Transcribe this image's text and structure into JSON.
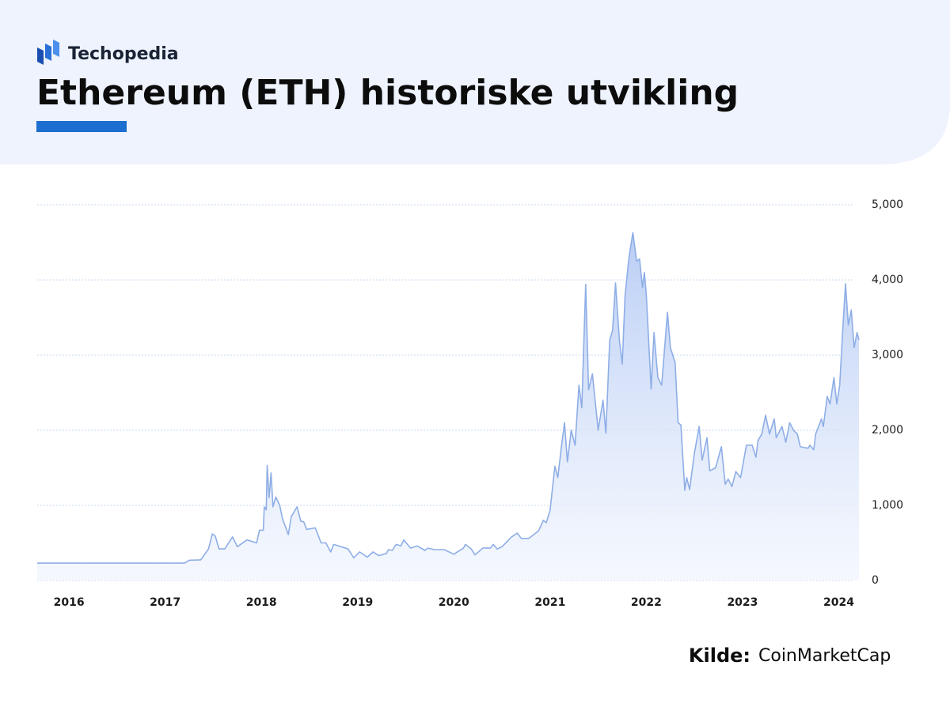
{
  "header": {
    "brand": "Techopedia"
  },
  "chart_data": {
    "type": "area",
    "title": "Ethereum (ETH) historiske utvikling",
    "source_label": "Kilde:",
    "source": "CoinMarketCap",
    "color": "#8eaee6",
    "grid": true,
    "xlim": [
      2015.67,
      2024.21
    ],
    "xticks": [
      2016,
      2017,
      2018,
      2019,
      2020,
      2021,
      2022,
      2023,
      2024
    ],
    "ylim": [
      0,
      5000
    ],
    "yticks": [
      0,
      {
        "value": 1000,
        "label": "1,000"
      },
      {
        "value": 2000,
        "label": "2,000"
      },
      {
        "value": 3000,
        "label": "3,000"
      },
      {
        "value": 4000,
        "label": "4,000"
      },
      {
        "value": 5000,
        "label": "5,000"
      }
    ],
    "x": [
      2015.67,
      2017.2,
      2017.25,
      2017.37,
      2017.45,
      2017.49,
      2017.52,
      2017.56,
      2017.62,
      2017.7,
      2017.75,
      2017.85,
      2017.95,
      2017.98,
      2018.02,
      2018.03,
      2018.05,
      2018.06,
      2018.08,
      2018.1,
      2018.12,
      2018.15,
      2018.19,
      2018.22,
      2018.28,
      2018.31,
      2018.37,
      2018.41,
      2018.44,
      2018.47,
      2018.56,
      2018.62,
      2018.67,
      2018.72,
      2018.75,
      2018.85,
      2018.9,
      2018.96,
      2019.02,
      2019.1,
      2019.16,
      2019.22,
      2019.3,
      2019.32,
      2019.36,
      2019.4,
      2019.45,
      2019.48,
      2019.55,
      2019.62,
      2019.7,
      2019.73,
      2019.8,
      2019.9,
      2020.0,
      2020.1,
      2020.12,
      2020.18,
      2020.22,
      2020.3,
      2020.38,
      2020.41,
      2020.45,
      2020.5,
      2020.6,
      2020.66,
      2020.7,
      2020.78,
      2020.88,
      2020.93,
      2020.96,
      2021.0,
      2021.05,
      2021.08,
      2021.12,
      2021.15,
      2021.18,
      2021.22,
      2021.26,
      2021.3,
      2021.33,
      2021.37,
      2021.4,
      2021.44,
      2021.5,
      2021.55,
      2021.58,
      2021.62,
      2021.65,
      2021.68,
      2021.72,
      2021.75,
      2021.78,
      2021.82,
      2021.86,
      2021.9,
      2021.93,
      2021.96,
      2021.98,
      2022.0,
      2022.05,
      2022.08,
      2022.12,
      2022.16,
      2022.22,
      2022.25,
      2022.3,
      2022.33,
      2022.36,
      2022.4,
      2022.42,
      2022.45,
      2022.5,
      2022.55,
      2022.58,
      2022.63,
      2022.66,
      2022.72,
      2022.78,
      2022.82,
      2022.85,
      2022.89,
      2022.93,
      2022.98,
      2023.04,
      2023.1,
      2023.14,
      2023.16,
      2023.2,
      2023.24,
      2023.28,
      2023.33,
      2023.35,
      2023.41,
      2023.45,
      2023.49,
      2023.53,
      2023.57,
      2023.6,
      2023.68,
      2023.7,
      2023.74,
      2023.76,
      2023.82,
      2023.84,
      2023.88,
      2023.91,
      2023.95,
      2023.98,
      2024.01,
      2024.04,
      2024.07,
      2024.1,
      2024.13,
      2024.16,
      2024.19,
      2024.21
    ],
    "values": [
      230,
      230,
      270,
      275,
      420,
      620,
      590,
      420,
      420,
      580,
      450,
      540,
      500,
      670,
      670,
      980,
      940,
      1530,
      1100,
      1430,
      980,
      1110,
      1000,
      820,
      610,
      850,
      980,
      790,
      780,
      680,
      700,
      500,
      500,
      380,
      480,
      440,
      420,
      300,
      380,
      310,
      380,
      330,
      360,
      410,
      400,
      480,
      460,
      540,
      430,
      460,
      400,
      430,
      410,
      410,
      350,
      430,
      480,
      420,
      340,
      430,
      430,
      480,
      420,
      450,
      580,
      630,
      560,
      560,
      660,
      800,
      770,
      930,
      1520,
      1370,
      1800,
      2100,
      1580,
      2000,
      1800,
      2600,
      2300,
      3940,
      2540,
      2750,
      2000,
      2400,
      1960,
      3200,
      3330,
      3960,
      3200,
      2880,
      3800,
      4300,
      4630,
      4250,
      4280,
      3900,
      4100,
      3800,
      2550,
      3300,
      2700,
      2600,
      3570,
      3100,
      2900,
      2100,
      2070,
      1200,
      1370,
      1210,
      1700,
      2050,
      1600,
      1900,
      1460,
      1500,
      1780,
      1280,
      1350,
      1250,
      1450,
      1370,
      1800,
      1800,
      1640,
      1860,
      1950,
      2200,
      1950,
      2150,
      1900,
      2050,
      1840,
      2100,
      2000,
      1950,
      1780,
      1760,
      1800,
      1740,
      1950,
      2150,
      2050,
      2450,
      2350,
      2700,
      2350,
      2600,
      3300,
      3950,
      3400,
      3600,
      3100,
      3300,
      3200
    ]
  }
}
